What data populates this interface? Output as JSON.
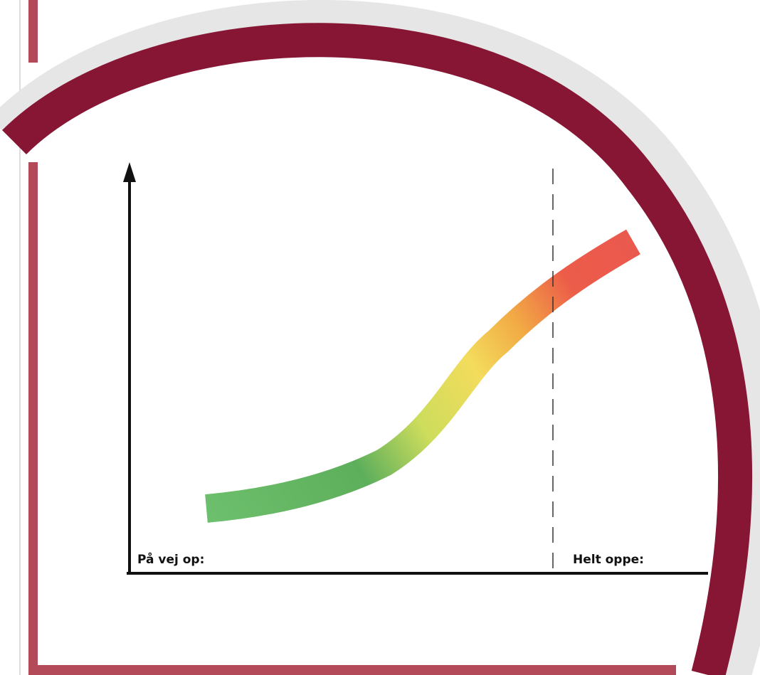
{
  "labels": {
    "left": "På vej op:",
    "right": "Helt oppe:"
  }
}
